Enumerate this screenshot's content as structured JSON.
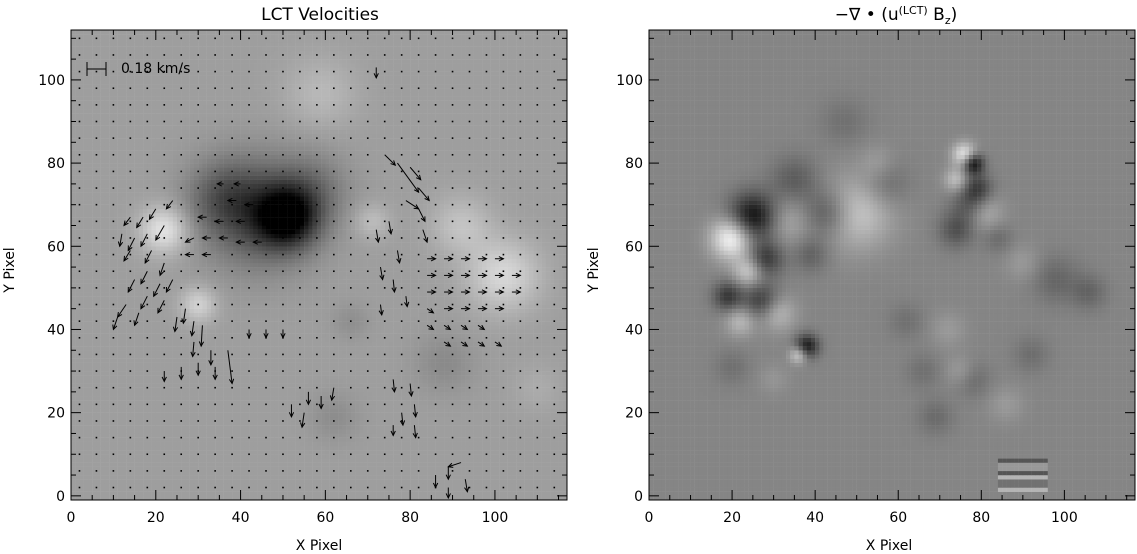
{
  "chart_data": [
    {
      "type": "vector-field",
      "title": "LCT Velocities",
      "xlabel": "X Pixel",
      "ylabel": "Y Pixel",
      "xlim": [
        0,
        117
      ],
      "ylim": [
        -1,
        112
      ],
      "xticks": [
        0,
        20,
        40,
        60,
        80,
        100
      ],
      "yticks": [
        0,
        20,
        40,
        60,
        80,
        100
      ],
      "scale_bar": {
        "label": "0.18 km/s",
        "x": 5,
        "y": 101.5,
        "length_x": 4.5
      },
      "background": {
        "base_gray": 0.62,
        "blobs": [
          {
            "x": 51,
            "y": 67,
            "r": 5,
            "dv": -0.55
          },
          {
            "x": 44,
            "y": 68,
            "r": 9,
            "dv": -0.32
          },
          {
            "x": 36,
            "y": 72,
            "r": 6,
            "dv": -0.18
          },
          {
            "x": 57,
            "y": 74,
            "r": 6,
            "dv": -0.14
          },
          {
            "x": 22,
            "y": 64,
            "r": 4,
            "dv": 0.28
          },
          {
            "x": 30,
            "y": 46,
            "r": 3,
            "dv": 0.2
          },
          {
            "x": 102,
            "y": 53,
            "r": 6,
            "dv": 0.22
          },
          {
            "x": 92,
            "y": 65,
            "r": 5,
            "dv": 0.14
          },
          {
            "x": 71,
            "y": 66,
            "r": 3,
            "dv": 0.12
          },
          {
            "x": 59,
            "y": 97,
            "r": 6,
            "dv": 0.1
          },
          {
            "x": 88,
            "y": 32,
            "r": 5,
            "dv": -0.08
          },
          {
            "x": 62,
            "y": 19,
            "r": 4,
            "dv": -0.07
          },
          {
            "x": 66,
            "y": 42,
            "r": 3,
            "dv": -0.06
          },
          {
            "x": 110,
            "y": 26,
            "r": 4,
            "dv": 0.05
          }
        ]
      },
      "vectors": [
        {
          "x": 74,
          "y": 82,
          "dx": 2.5,
          "dy": -2.5
        },
        {
          "x": 77,
          "y": 80,
          "dx": 5,
          "dy": -7
        },
        {
          "x": 80,
          "y": 79,
          "dx": 2.5,
          "dy": -3
        },
        {
          "x": 82,
          "y": 74,
          "dx": 2.5,
          "dy": -3
        },
        {
          "x": 79,
          "y": 71,
          "dx": 3,
          "dy": -2
        },
        {
          "x": 82,
          "y": 69,
          "dx": 1.5,
          "dy": -3
        },
        {
          "x": 83,
          "y": 64,
          "dx": 1,
          "dy": -3
        },
        {
          "x": 75,
          "y": 66,
          "dx": 0.5,
          "dy": -3
        },
        {
          "x": 72,
          "y": 64,
          "dx": 0.5,
          "dy": -3
        },
        {
          "x": 77,
          "y": 59,
          "dx": 0.5,
          "dy": -3
        },
        {
          "x": 73,
          "y": 55,
          "dx": 0.5,
          "dy": -3
        },
        {
          "x": 76,
          "y": 52,
          "dx": 0.3,
          "dy": -3
        },
        {
          "x": 79,
          "y": 48,
          "dx": 0.3,
          "dy": -2.5
        },
        {
          "x": 73,
          "y": 46,
          "dx": 0.3,
          "dy": -2.5
        },
        {
          "x": 24,
          "y": 71,
          "dx": -1.5,
          "dy": -2
        },
        {
          "x": 20,
          "y": 69,
          "dx": -1.5,
          "dy": -2.5
        },
        {
          "x": 17,
          "y": 67,
          "dx": -1.5,
          "dy": -2.5
        },
        {
          "x": 14,
          "y": 67,
          "dx": -1.5,
          "dy": -2
        },
        {
          "x": 22,
          "y": 65,
          "dx": -2,
          "dy": -3.5
        },
        {
          "x": 18,
          "y": 63,
          "dx": -1.5,
          "dy": -3
        },
        {
          "x": 15,
          "y": 62,
          "dx": -1.5,
          "dy": -3
        },
        {
          "x": 12,
          "y": 63,
          "dx": -0.5,
          "dy": -3
        },
        {
          "x": 14,
          "y": 59,
          "dx": -1.5,
          "dy": -2.5
        },
        {
          "x": 19,
          "y": 59,
          "dx": -1.5,
          "dy": -3
        },
        {
          "x": 22,
          "y": 56,
          "dx": -1,
          "dy": -3
        },
        {
          "x": 18,
          "y": 54,
          "dx": -1.5,
          "dy": -3
        },
        {
          "x": 15,
          "y": 52,
          "dx": -1.5,
          "dy": -3
        },
        {
          "x": 21,
          "y": 51,
          "dx": -1.5,
          "dy": -3
        },
        {
          "x": 24,
          "y": 52,
          "dx": -1.5,
          "dy": -3
        },
        {
          "x": 18,
          "y": 48,
          "dx": -1.5,
          "dy": -3
        },
        {
          "x": 22,
          "y": 47,
          "dx": -1.5,
          "dy": -3
        },
        {
          "x": 13,
          "y": 46,
          "dx": -2,
          "dy": -3
        },
        {
          "x": 16,
          "y": 44,
          "dx": -1,
          "dy": -3
        },
        {
          "x": 11,
          "y": 43,
          "dx": -1,
          "dy": -3
        },
        {
          "x": 27,
          "y": 45,
          "dx": -0.5,
          "dy": -3.5
        },
        {
          "x": 25,
          "y": 43,
          "dx": -0.5,
          "dy": -3.5
        },
        {
          "x": 29,
          "y": 42,
          "dx": -0.5,
          "dy": -3.5
        },
        {
          "x": 31,
          "y": 41,
          "dx": -0.3,
          "dy": -5
        },
        {
          "x": 29,
          "y": 37,
          "dx": -0.3,
          "dy": -3.5
        },
        {
          "x": 33,
          "y": 35,
          "dx": 0,
          "dy": -3.5
        },
        {
          "x": 37,
          "y": 35,
          "dx": 1,
          "dy": -8
        },
        {
          "x": 34,
          "y": 31,
          "dx": 0,
          "dy": -3
        },
        {
          "x": 26,
          "y": 31,
          "dx": 0,
          "dy": -3
        },
        {
          "x": 22,
          "y": 30,
          "dx": 0,
          "dy": -2.5
        },
        {
          "x": 30,
          "y": 32,
          "dx": 0,
          "dy": -3
        },
        {
          "x": 42,
          "y": 40,
          "dx": 0,
          "dy": -2
        },
        {
          "x": 46,
          "y": 40,
          "dx": 0,
          "dy": -2
        },
        {
          "x": 50,
          "y": 40,
          "dx": 0,
          "dy": -2
        },
        {
          "x": 29,
          "y": 58,
          "dx": -2,
          "dy": 0
        },
        {
          "x": 33,
          "y": 58,
          "dx": -2,
          "dy": 0
        },
        {
          "x": 29,
          "y": 62,
          "dx": -2,
          "dy": -1
        },
        {
          "x": 33,
          "y": 62,
          "dx": -2,
          "dy": 0
        },
        {
          "x": 37,
          "y": 62,
          "dx": -2,
          "dy": 0
        },
        {
          "x": 41,
          "y": 61,
          "dx": -2,
          "dy": 0
        },
        {
          "x": 45,
          "y": 61,
          "dx": -2,
          "dy": 0
        },
        {
          "x": 32,
          "y": 67,
          "dx": -2,
          "dy": 0
        },
        {
          "x": 36,
          "y": 66,
          "dx": -2,
          "dy": 0
        },
        {
          "x": 41,
          "y": 66,
          "dx": -2,
          "dy": 0
        },
        {
          "x": 39,
          "y": 71,
          "dx": -2,
          "dy": 0
        },
        {
          "x": 43,
          "y": 70,
          "dx": -2,
          "dy": 0
        },
        {
          "x": 36,
          "y": 75,
          "dx": -1.5,
          "dy": 0
        },
        {
          "x": 40,
          "y": 75,
          "dx": -1.5,
          "dy": 0
        },
        {
          "x": 84,
          "y": 57,
          "dx": 2,
          "dy": 0
        },
        {
          "x": 88,
          "y": 57,
          "dx": 2,
          "dy": 0
        },
        {
          "x": 92,
          "y": 57,
          "dx": 2,
          "dy": 0
        },
        {
          "x": 96,
          "y": 57,
          "dx": 2,
          "dy": 0
        },
        {
          "x": 100,
          "y": 57,
          "dx": 2,
          "dy": 0
        },
        {
          "x": 84,
          "y": 53,
          "dx": 2,
          "dy": 0
        },
        {
          "x": 88,
          "y": 53,
          "dx": 2,
          "dy": 0
        },
        {
          "x": 92,
          "y": 53,
          "dx": 2,
          "dy": 0
        },
        {
          "x": 96,
          "y": 53,
          "dx": 2,
          "dy": 0
        },
        {
          "x": 100,
          "y": 53,
          "dx": 2,
          "dy": 0
        },
        {
          "x": 104,
          "y": 53,
          "dx": 2,
          "dy": 0
        },
        {
          "x": 84,
          "y": 49,
          "dx": 2,
          "dy": 0
        },
        {
          "x": 88,
          "y": 49,
          "dx": 2,
          "dy": 0
        },
        {
          "x": 92,
          "y": 49,
          "dx": 2,
          "dy": 0
        },
        {
          "x": 96,
          "y": 49,
          "dx": 2,
          "dy": 0
        },
        {
          "x": 100,
          "y": 49,
          "dx": 2,
          "dy": 0
        },
        {
          "x": 104,
          "y": 49,
          "dx": 2,
          "dy": 0
        },
        {
          "x": 84,
          "y": 45,
          "dx": 1.5,
          "dy": -1
        },
        {
          "x": 88,
          "y": 45,
          "dx": 2,
          "dy": 0
        },
        {
          "x": 92,
          "y": 45,
          "dx": 2,
          "dy": 0
        },
        {
          "x": 96,
          "y": 45,
          "dx": 2,
          "dy": 0
        },
        {
          "x": 100,
          "y": 45,
          "dx": 2,
          "dy": 0
        },
        {
          "x": 84,
          "y": 41,
          "dx": 1.5,
          "dy": -1
        },
        {
          "x": 88,
          "y": 41,
          "dx": 1.5,
          "dy": -1
        },
        {
          "x": 92,
          "y": 41,
          "dx": 1.5,
          "dy": -1
        },
        {
          "x": 96,
          "y": 41,
          "dx": 1.5,
          "dy": -1
        },
        {
          "x": 88,
          "y": 37,
          "dx": 1.5,
          "dy": -1
        },
        {
          "x": 92,
          "y": 37,
          "dx": 1.5,
          "dy": -1
        },
        {
          "x": 96,
          "y": 37,
          "dx": 1.5,
          "dy": -1
        },
        {
          "x": 100,
          "y": 37,
          "dx": 1.5,
          "dy": -1
        },
        {
          "x": 56,
          "y": 25,
          "dx": 0,
          "dy": -3
        },
        {
          "x": 59,
          "y": 24,
          "dx": 0,
          "dy": -3
        },
        {
          "x": 62,
          "y": 26,
          "dx": -0.5,
          "dy": -3
        },
        {
          "x": 55,
          "y": 20,
          "dx": -0.5,
          "dy": -3.5
        },
        {
          "x": 52,
          "y": 22,
          "dx": 0,
          "dy": -3
        },
        {
          "x": 76,
          "y": 28,
          "dx": 0.3,
          "dy": -3
        },
        {
          "x": 80,
          "y": 27,
          "dx": 0.3,
          "dy": -3
        },
        {
          "x": 81,
          "y": 22,
          "dx": 0.3,
          "dy": -3
        },
        {
          "x": 78,
          "y": 20,
          "dx": 0.3,
          "dy": -3
        },
        {
          "x": 81,
          "y": 17,
          "dx": 0.3,
          "dy": -3
        },
        {
          "x": 76,
          "y": 17,
          "dx": 0,
          "dy": -2.5
        },
        {
          "x": 92,
          "y": 8,
          "dx": -3,
          "dy": -1
        },
        {
          "x": 89,
          "y": 7,
          "dx": 0,
          "dy": -3
        },
        {
          "x": 86,
          "y": 5,
          "dx": 0,
          "dy": -3
        },
        {
          "x": 93,
          "y": 4,
          "dx": 0.5,
          "dy": -3
        },
        {
          "x": 89,
          "y": 2,
          "dx": 0,
          "dy": -2.5
        },
        {
          "x": 72,
          "y": 103,
          "dx": 0,
          "dy": -2.5
        }
      ]
    },
    {
      "type": "heatmap",
      "title": "−∇ • (u(LCT) Bz)",
      "title_parts": {
        "prefix": "−∇ • (u",
        "sup": "(LCT)",
        "mid": " B",
        "sub": "z",
        "suffix": ")"
      },
      "xlabel": "X Pixel",
      "ylabel": "Y Pixel",
      "xlim": [
        0,
        117
      ],
      "ylim": [
        -1,
        112
      ],
      "xticks": [
        0,
        20,
        40,
        60,
        80,
        100
      ],
      "yticks": [
        0,
        20,
        40,
        60,
        80,
        100
      ],
      "background": {
        "base_gray": 0.52,
        "blobs": [
          {
            "x": 25,
            "y": 67,
            "r": 4,
            "dv": -0.48
          },
          {
            "x": 20,
            "y": 62,
            "r": 3.5,
            "dv": 0.48
          },
          {
            "x": 28,
            "y": 57,
            "r": 3,
            "dv": -0.3
          },
          {
            "x": 24,
            "y": 54,
            "r": 2.5,
            "dv": 0.28
          },
          {
            "x": 19,
            "y": 48,
            "r": 2.5,
            "dv": -0.3
          },
          {
            "x": 27,
            "y": 47,
            "r": 3,
            "dv": -0.28
          },
          {
            "x": 31,
            "y": 44,
            "r": 3,
            "dv": 0.2
          },
          {
            "x": 22,
            "y": 42,
            "r": 2.5,
            "dv": 0.2
          },
          {
            "x": 38,
            "y": 36,
            "r": 2,
            "dv": -0.42
          },
          {
            "x": 36,
            "y": 34,
            "r": 1.5,
            "dv": 0.32
          },
          {
            "x": 50,
            "y": 68,
            "r": 6,
            "dv": 0.26
          },
          {
            "x": 43,
            "y": 68,
            "r": 4,
            "dv": -0.22
          },
          {
            "x": 35,
            "y": 76,
            "r": 4,
            "dv": -0.16
          },
          {
            "x": 33,
            "y": 66,
            "r": 4,
            "dv": 0.14
          },
          {
            "x": 39,
            "y": 58,
            "r": 3,
            "dv": -0.14
          },
          {
            "x": 57,
            "y": 75,
            "r": 4,
            "dv": -0.12
          },
          {
            "x": 47,
            "y": 90,
            "r": 4,
            "dv": -0.08
          },
          {
            "x": 55,
            "y": 80,
            "r": 3,
            "dv": 0.09
          },
          {
            "x": 78,
            "y": 80,
            "r": 1.8,
            "dv": -0.5
          },
          {
            "x": 76,
            "y": 82,
            "r": 2,
            "dv": 0.42
          },
          {
            "x": 79,
            "y": 74,
            "r": 2.5,
            "dv": -0.26
          },
          {
            "x": 74,
            "y": 76,
            "r": 2,
            "dv": 0.24
          },
          {
            "x": 77,
            "y": 70,
            "r": 3,
            "dv": -0.16
          },
          {
            "x": 81,
            "y": 68,
            "r": 3,
            "dv": 0.15
          },
          {
            "x": 74,
            "y": 64,
            "r": 3,
            "dv": -0.2
          },
          {
            "x": 84,
            "y": 62,
            "r": 2.5,
            "dv": -0.1
          },
          {
            "x": 98,
            "y": 52,
            "r": 4,
            "dv": -0.12
          },
          {
            "x": 106,
            "y": 49,
            "r": 3,
            "dv": -0.12
          },
          {
            "x": 90,
            "y": 56,
            "r": 3,
            "dv": 0.08
          },
          {
            "x": 92,
            "y": 34,
            "r": 3,
            "dv": -0.09
          },
          {
            "x": 62,
            "y": 42,
            "r": 3,
            "dv": -0.08
          },
          {
            "x": 72,
            "y": 40,
            "r": 3,
            "dv": 0.08
          },
          {
            "x": 66,
            "y": 30,
            "r": 3,
            "dv": -0.08
          },
          {
            "x": 78,
            "y": 28,
            "r": 3,
            "dv": -0.1
          },
          {
            "x": 86,
            "y": 22,
            "r": 3,
            "dv": 0.08
          },
          {
            "x": 69,
            "y": 19,
            "r": 3,
            "dv": -0.1
          },
          {
            "x": 75,
            "y": 30,
            "r": 2.5,
            "dv": 0.1
          },
          {
            "x": 20,
            "y": 31,
            "r": 3,
            "dv": -0.08
          },
          {
            "x": 30,
            "y": 28,
            "r": 2.5,
            "dv": 0.06
          }
        ],
        "stripes": {
          "x0": 84,
          "x1": 96,
          "y0": 1,
          "y1": 9,
          "count": 5,
          "dv": 0.2
        }
      }
    }
  ]
}
